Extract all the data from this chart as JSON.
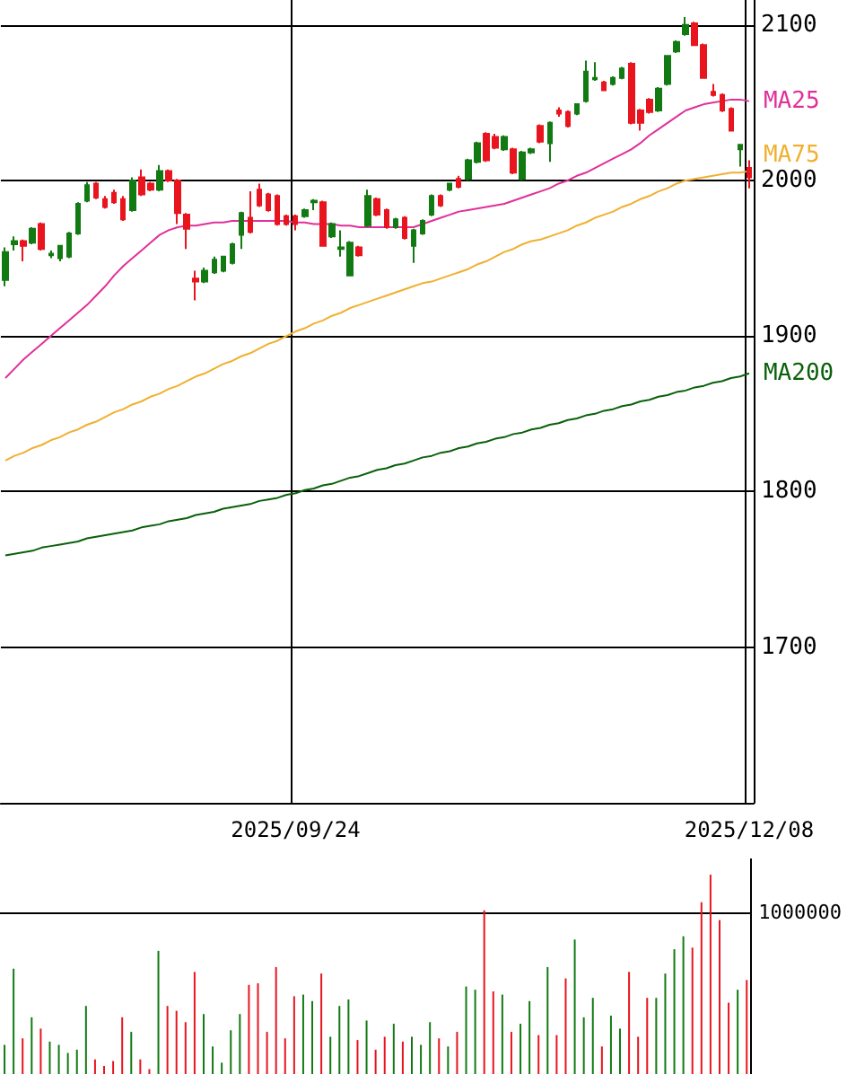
{
  "chart_data": [
    {
      "type": "candlestick",
      "categories": [
        null,
        null,
        null,
        null,
        null,
        null,
        null,
        null,
        null,
        null,
        null,
        null,
        null,
        null,
        null,
        null,
        null,
        null,
        null,
        null,
        null,
        null,
        null,
        null,
        null,
        null,
        null,
        null,
        null,
        null,
        null,
        null,
        "2025/09/24",
        null,
        null,
        null,
        null,
        null,
        null,
        null,
        null,
        null,
        null,
        null,
        null,
        null,
        null,
        null,
        null,
        null,
        null,
        null,
        null,
        null,
        null,
        null,
        null,
        null,
        null,
        null,
        null,
        null,
        null,
        null,
        null,
        null,
        null,
        null,
        null,
        null,
        null,
        null,
        null,
        null,
        null,
        null,
        null,
        null,
        null,
        null,
        null,
        null,
        "2025/12/08"
      ],
      "ohlc": [
        [
          1936,
          1957,
          1932,
          1954
        ],
        [
          1959,
          1964,
          1955,
          1961
        ],
        [
          1961,
          1962,
          1948,
          1958
        ],
        [
          1960,
          1970,
          1959,
          1969
        ],
        [
          1972,
          1973,
          1955,
          1956
        ],
        [
          1952,
          1955,
          1950,
          1953
        ],
        [
          1950,
          1958,
          1948,
          1958
        ],
        [
          1951,
          1967,
          1950,
          1966
        ],
        [
          1966,
          1986,
          1965,
          1985
        ],
        [
          1987,
          1999,
          1986,
          1997
        ],
        [
          1998,
          1999,
          1988,
          1989
        ],
        [
          1988,
          1990,
          1982,
          1983
        ],
        [
          1992,
          1994,
          1985,
          1986
        ],
        [
          1988,
          1990,
          1974,
          1975
        ],
        [
          1981,
          2002,
          1980,
          2000
        ],
        [
          2002,
          2007,
          1990,
          1991
        ],
        [
          1998,
          1999,
          1993,
          1994
        ],
        [
          1994,
          2010,
          1993,
          2006
        ],
        [
          2006,
          2007,
          1999,
          2000
        ],
        [
          2000,
          2001,
          1972,
          1979
        ],
        [
          1978,
          1979,
          1956,
          1969
        ],
        [
          1937,
          1942,
          1923,
          1935
        ],
        [
          1935,
          1944,
          1934,
          1942
        ],
        [
          1941,
          1951,
          1940,
          1949
        ],
        [
          1942,
          1951,
          1941,
          1951
        ],
        [
          1947,
          1960,
          1946,
          1959
        ],
        [
          1965,
          1980,
          1956,
          1979
        ],
        [
          1976,
          1993,
          1966,
          1967
        ],
        [
          1994,
          1998,
          1983,
          1984
        ],
        [
          1991,
          1992,
          1980,
          1981
        ],
        [
          1990,
          1991,
          1971,
          1972
        ],
        [
          1977,
          1978,
          1971,
          1972
        ],
        [
          1977,
          1978,
          1968,
          1972
        ],
        [
          1977,
          1982,
          1976,
          1981
        ],
        [
          1986,
          1988,
          1981,
          1987
        ],
        [
          1986,
          1987,
          1958,
          1958
        ],
        [
          1964,
          1973,
          1963,
          1972
        ],
        [
          1956,
          1968,
          1951,
          1957
        ],
        [
          1939,
          1961,
          1939,
          1960
        ],
        [
          1957,
          1958,
          1951,
          1952
        ],
        [
          1971,
          1994,
          1970,
          1990
        ],
        [
          1988,
          1989,
          1977,
          1978
        ],
        [
          1981,
          1982,
          1969,
          1970
        ],
        [
          1970,
          1976,
          1969,
          1975
        ],
        [
          1976,
          1977,
          1962,
          1963
        ],
        [
          1958,
          1969,
          1947,
          1968
        ],
        [
          1966,
          1975,
          1965,
          1974
        ],
        [
          1978,
          1991,
          1977,
          1990
        ],
        [
          1990,
          1991,
          1983,
          1984
        ],
        [
          1994,
          1998,
          1993,
          1998
        ],
        [
          2001,
          2003,
          1995,
          1996
        ],
        [
          2001,
          2014,
          2000,
          2013
        ],
        [
          2012,
          2025,
          2011,
          2024
        ],
        [
          2030,
          2031,
          2012,
          2013
        ],
        [
          2028,
          2030,
          2020,
          2021
        ],
        [
          2020,
          2029,
          2019,
          2028
        ],
        [
          2020,
          2021,
          2004,
          2005
        ],
        [
          2001,
          2019,
          2000,
          2018
        ],
        [
          2018,
          2021,
          2017,
          2020
        ],
        [
          2035,
          2036,
          2024,
          2025
        ],
        [
          2024,
          2038,
          2012,
          2037
        ],
        [
          2045,
          2047,
          2041,
          2043
        ],
        [
          2044,
          2045,
          2034,
          2035
        ],
        [
          2043,
          2049,
          2042,
          2049
        ],
        [
          2051,
          2077,
          2050,
          2070
        ],
        [
          2065,
          2076,
          2064,
          2066
        ],
        [
          2063,
          2064,
          2058,
          2058
        ],
        [
          2062,
          2067,
          2061,
          2066
        ],
        [
          2066,
          2073,
          2065,
          2072
        ],
        [
          2075,
          2076,
          2036,
          2037
        ],
        [
          2045,
          2046,
          2032,
          2037
        ],
        [
          2052,
          2053,
          2043,
          2044
        ],
        [
          2045,
          2060,
          2044,
          2059
        ],
        [
          2062,
          2080,
          2061,
          2080
        ],
        [
          2083,
          2090,
          2082,
          2089
        ],
        [
          2094,
          2105,
          2093,
          2100
        ],
        [
          2101,
          2102,
          2087,
          2087
        ],
        [
          2087,
          2088,
          2066,
          2066
        ],
        [
          2057,
          2062,
          2054,
          2055
        ],
        [
          2055,
          2056,
          2044,
          2045
        ],
        [
          2046,
          2047,
          2032,
          2032
        ],
        [
          2020,
          2023,
          2009,
          2023
        ],
        [
          2008,
          2013,
          1995,
          2002
        ]
      ],
      "colors": [
        "#127a12",
        "#127a12",
        "#e8141e",
        "#127a12",
        "#e8141e",
        "#127a12",
        "#127a12",
        "#127a12",
        "#127a12",
        "#127a12",
        "#e8141e",
        "#e8141e",
        "#e8141e",
        "#e8141e",
        "#127a12",
        "#e8141e",
        "#e8141e",
        "#127a12",
        "#e8141e",
        "#e8141e",
        "#e8141e",
        "#e8141e",
        "#127a12",
        "#127a12",
        "#127a12",
        "#127a12",
        "#127a12",
        "#e8141e",
        "#e8141e",
        "#e8141e",
        "#e8141e",
        "#e8141e",
        "#e8141e",
        "#127a12",
        "#127a12",
        "#e8141e",
        "#127a12",
        "#127a12",
        "#127a12",
        "#e8141e",
        "#127a12",
        "#e8141e",
        "#e8141e",
        "#127a12",
        "#e8141e",
        "#127a12",
        "#127a12",
        "#127a12",
        "#e8141e",
        "#127a12",
        "#e8141e",
        "#127a12",
        "#127a12",
        "#e8141e",
        "#e8141e",
        "#127a12",
        "#e8141e",
        "#127a12",
        "#127a12",
        "#e8141e",
        "#127a12",
        "#e8141e",
        "#e8141e",
        "#127a12",
        "#127a12",
        "#127a12",
        "#e8141e",
        "#127a12",
        "#127a12",
        "#e8141e",
        "#e8141e",
        "#e8141e",
        "#127a12",
        "#127a12",
        "#127a12",
        "#127a12",
        "#e8141e",
        "#e8141e",
        "#e8141e",
        "#e8141e",
        "#e8141e",
        "#127a12",
        "#e8141e"
      ],
      "series": [
        {
          "name": "MA25",
          "type": "line",
          "color": "#e0309a",
          "values": [
            1873,
            1879,
            1885,
            1890,
            1895,
            1900,
            1905,
            1910,
            1915,
            1920,
            1926,
            1932,
            1939,
            1945,
            1950,
            1955,
            1960,
            1965,
            1968,
            1970,
            1971,
            1971,
            1972,
            1973,
            1973,
            1974,
            1974,
            1974,
            1974,
            1974,
            1974,
            1974,
            1973,
            1973,
            1972,
            1972,
            1972,
            1971,
            1971,
            1970,
            1970,
            1970,
            1970,
            1970,
            1970,
            1970,
            1972,
            1974,
            1976,
            1978,
            1980,
            1981,
            1982,
            1983,
            1984,
            1985,
            1987,
            1989,
            1991,
            1993,
            1995,
            1998,
            2000,
            2003,
            2005,
            2008,
            2011,
            2014,
            2017,
            2020,
            2024,
            2029,
            2033,
            2037,
            2041,
            2045,
            2047,
            2049,
            2050,
            2051,
            2052,
            2052,
            2051
          ]
        },
        {
          "name": "MA75",
          "type": "line",
          "color": "#f0b030",
          "values": [
            1820,
            1823,
            1825,
            1828,
            1830,
            1833,
            1835,
            1838,
            1840,
            1843,
            1845,
            1848,
            1851,
            1853,
            1856,
            1858,
            1861,
            1863,
            1866,
            1868,
            1871,
            1874,
            1876,
            1879,
            1882,
            1884,
            1887,
            1889,
            1892,
            1895,
            1897,
            1900,
            1903,
            1905,
            1908,
            1910,
            1913,
            1915,
            1918,
            1920,
            1922,
            1924,
            1926,
            1928,
            1930,
            1932,
            1934,
            1935,
            1937,
            1939,
            1941,
            1943,
            1946,
            1948,
            1951,
            1954,
            1956,
            1959,
            1961,
            1962,
            1964,
            1966,
            1968,
            1971,
            1973,
            1976,
            1978,
            1980,
            1983,
            1985,
            1988,
            1990,
            1993,
            1995,
            1998,
            2000,
            2001,
            2002,
            2003,
            2004,
            2005,
            2005,
            2006
          ]
        },
        {
          "name": "MA200",
          "type": "line",
          "color": "#0a600a",
          "values": [
            1759,
            1760,
            1761,
            1762,
            1764,
            1765,
            1766,
            1767,
            1768,
            1770,
            1771,
            1772,
            1773,
            1774,
            1775,
            1777,
            1778,
            1779,
            1781,
            1782,
            1783,
            1785,
            1786,
            1787,
            1789,
            1790,
            1791,
            1792,
            1794,
            1795,
            1796,
            1798,
            1799,
            1801,
            1802,
            1804,
            1805,
            1807,
            1809,
            1810,
            1812,
            1814,
            1815,
            1817,
            1818,
            1820,
            1822,
            1823,
            1825,
            1826,
            1828,
            1829,
            1831,
            1832,
            1834,
            1835,
            1837,
            1838,
            1840,
            1841,
            1843,
            1844,
            1846,
            1847,
            1849,
            1850,
            1852,
            1853,
            1855,
            1856,
            1858,
            1859,
            1861,
            1862,
            1864,
            1865,
            1867,
            1868,
            1870,
            1871,
            1873,
            1874,
            1876
          ]
        }
      ],
      "ylim": [
        1600,
        2116
      ],
      "yticks": [
        1700,
        1800,
        1900,
        2000,
        2100
      ],
      "grid": true,
      "marker": "none"
    },
    {
      "type": "bar",
      "categories": [
        null,
        null,
        null,
        null,
        null,
        null,
        null,
        null,
        null,
        null,
        null,
        null,
        null,
        null,
        null,
        null,
        null,
        null,
        null,
        null,
        null,
        null,
        null,
        null,
        null,
        null,
        null,
        null,
        null,
        null,
        null,
        null,
        "2025/09/24",
        null,
        null,
        null,
        null,
        null,
        null,
        null,
        null,
        null,
        null,
        null,
        null,
        null,
        null,
        null,
        null,
        null,
        null,
        null,
        null,
        null,
        null,
        null,
        null,
        null,
        null,
        null,
        null,
        null,
        null,
        null,
        null,
        null,
        null,
        null,
        null,
        null,
        null,
        null,
        null,
        null,
        null,
        null,
        null,
        null,
        null,
        null,
        null,
        null,
        "2025/12/08"
      ],
      "values": [
        180000,
        650000,
        220000,
        350000,
        280000,
        200000,
        180000,
        130000,
        150000,
        420000,
        90000,
        50000,
        80000,
        350000,
        260000,
        90000,
        30000,
        760000,
        420000,
        390000,
        320000,
        630000,
        370000,
        170000,
        70000,
        270000,
        370000,
        550000,
        560000,
        260000,
        660000,
        220000,
        480000,
        490000,
        450000,
        620000,
        230000,
        420000,
        460000,
        210000,
        330000,
        150000,
        230000,
        310000,
        200000,
        230000,
        180000,
        320000,
        220000,
        170000,
        260000,
        540000,
        520000,
        1010000,
        510000,
        490000,
        260000,
        310000,
        450000,
        240000,
        660000,
        240000,
        590000,
        830000,
        350000,
        470000,
        170000,
        360000,
        280000,
        630000,
        230000,
        470000,
        470000,
        620000,
        770000,
        850000,
        780000,
        1060000,
        1230000,
        950000,
        440000,
        520000,
        580000
      ],
      "colors": [
        "#127a12",
        "#127a12",
        "#e8141e",
        "#127a12",
        "#e8141e",
        "#127a12",
        "#127a12",
        "#127a12",
        "#127a12",
        "#127a12",
        "#e8141e",
        "#e8141e",
        "#e8141e",
        "#e8141e",
        "#127a12",
        "#e8141e",
        "#e8141e",
        "#127a12",
        "#e8141e",
        "#e8141e",
        "#e8141e",
        "#e8141e",
        "#127a12",
        "#127a12",
        "#127a12",
        "#127a12",
        "#127a12",
        "#e8141e",
        "#e8141e",
        "#e8141e",
        "#e8141e",
        "#e8141e",
        "#e8141e",
        "#127a12",
        "#127a12",
        "#e8141e",
        "#127a12",
        "#127a12",
        "#127a12",
        "#e8141e",
        "#127a12",
        "#e8141e",
        "#e8141e",
        "#127a12",
        "#e8141e",
        "#127a12",
        "#127a12",
        "#127a12",
        "#e8141e",
        "#127a12",
        "#e8141e",
        "#127a12",
        "#127a12",
        "#e8141e",
        "#e8141e",
        "#127a12",
        "#e8141e",
        "#127a12",
        "#127a12",
        "#e8141e",
        "#127a12",
        "#e8141e",
        "#e8141e",
        "#127a12",
        "#127a12",
        "#127a12",
        "#e8141e",
        "#127a12",
        "#127a12",
        "#e8141e",
        "#e8141e",
        "#e8141e",
        "#127a12",
        "#127a12",
        "#127a12",
        "#127a12",
        "#e8141e",
        "#e8141e",
        "#e8141e",
        "#e8141e",
        "#e8141e",
        "#127a12",
        "#e8141e"
      ],
      "ylim": [
        0,
        1330000
      ],
      "yticks": [
        1000000
      ],
      "grid": "y",
      "tick_labels": "y"
    }
  ]
}
